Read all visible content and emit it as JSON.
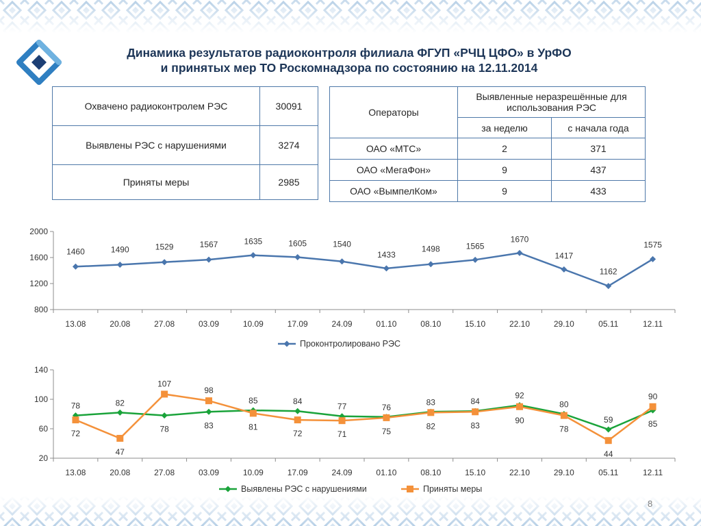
{
  "slide": {
    "title_line1": "Динамика результатов радиоконтроля филиала ФГУП «РЧЦ ЦФО» в УрФО",
    "title_line2": "и принятых мер ТО Роскомнадзора по состоянию на 12.11.2014",
    "page_number": "8"
  },
  "summary_table": {
    "rows": [
      {
        "label": "Охвачено радиоконтролем РЭС",
        "value": "30091"
      },
      {
        "label": "Выявлены РЭС с нарушениями",
        "value": "3274"
      },
      {
        "label": "Приняты меры",
        "value": "2985"
      }
    ]
  },
  "operators_table": {
    "header_operators": "Операторы",
    "header_group": "Выявленные неразрешённые для использования РЭС",
    "header_week": "за неделю",
    "header_year": "с начала года",
    "rows": [
      {
        "name": "ОАО «МТС»",
        "week": "2",
        "year": "371"
      },
      {
        "name": "ОАО «МегаФон»",
        "week": "9",
        "year": "437"
      },
      {
        "name": "ОАО «ВымпелКом»",
        "week": "9",
        "year": "433"
      }
    ]
  },
  "colors": {
    "title": "#1c3557",
    "series_blue": "#4a76ad",
    "series_green": "#1aa33a",
    "series_orange": "#f4913a",
    "table_border": "#4e78a8"
  },
  "chart_data": [
    {
      "type": "line",
      "categories": [
        "13.08",
        "20.08",
        "27.08",
        "03.09",
        "10.09",
        "17.09",
        "24.09",
        "01.10",
        "08.10",
        "15.10",
        "22.10",
        "29.10",
        "05.11",
        "12.11"
      ],
      "series": [
        {
          "name": "Проконтролировано РЭС",
          "values": [
            1460,
            1490,
            1529,
            1567,
            1635,
            1605,
            1540,
            1433,
            1498,
            1565,
            1670,
            1417,
            1162,
            1575
          ]
        }
      ],
      "ylim": [
        800,
        2000
      ],
      "yticks": [
        "800",
        "1200",
        "1600",
        "2000"
      ],
      "grid": false,
      "legend": "bottom"
    },
    {
      "type": "line",
      "categories": [
        "13.08",
        "20.08",
        "27.08",
        "03.09",
        "10.09",
        "17.09",
        "24.09",
        "01.10",
        "08.10",
        "15.10",
        "22.10",
        "29.10",
        "05.11",
        "12.11"
      ],
      "series": [
        {
          "name": "Выявлены РЭС с нарушениями",
          "values": [
            78,
            82,
            78,
            83,
            85,
            84,
            77,
            76,
            83,
            84,
            92,
            80,
            59,
            85
          ]
        },
        {
          "name": "Приняты меры",
          "values": [
            72,
            47,
            107,
            98,
            81,
            72,
            71,
            75,
            82,
            83,
            90,
            78,
            44,
            90
          ]
        }
      ],
      "ylim": [
        20,
        140
      ],
      "yticks": [
        "20",
        "60",
        "100",
        "140"
      ],
      "grid": false,
      "legend": "bottom"
    }
  ]
}
